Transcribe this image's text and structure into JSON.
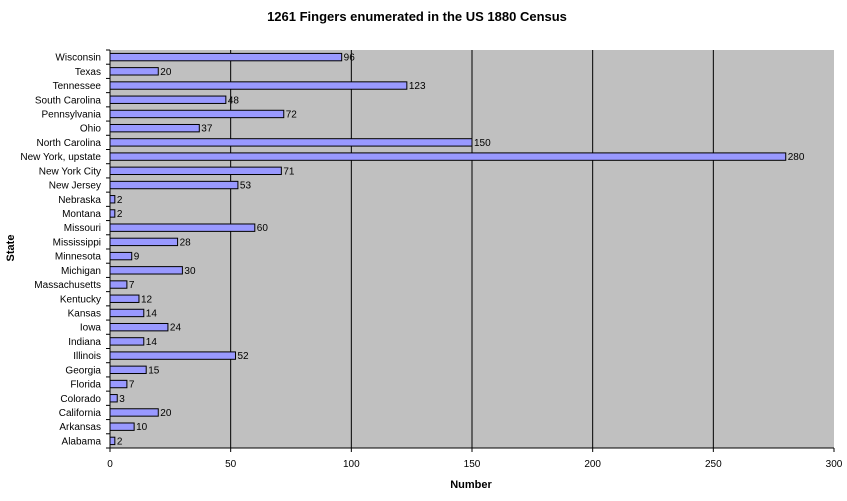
{
  "chart_data": {
    "type": "bar",
    "orientation": "horizontal",
    "title": "1261 Fingers enumerated in the US 1880 Census",
    "xlabel": "Number",
    "ylabel": "State",
    "xlim": [
      0,
      300
    ],
    "x_ticks": [
      0,
      50,
      100,
      150,
      200,
      250,
      300
    ],
    "grid": true,
    "categories": [
      "Wisconsin",
      "Texas",
      "Tennessee",
      "South Carolina",
      "Pennsylvania",
      "Ohio",
      "North Carolina",
      "New York, upstate",
      "New York City",
      "New Jersey",
      "Nebraska",
      "Montana",
      "Missouri",
      "Mississippi",
      "Minnesota",
      "Michigan",
      "Massachusetts",
      "Kentucky",
      "Kansas",
      "Iowa",
      "Indiana",
      "Illinois",
      "Georgia",
      "Florida",
      "Colorado",
      "California",
      "Arkansas",
      "Alabama"
    ],
    "values": [
      96,
      20,
      123,
      48,
      72,
      37,
      150,
      280,
      71,
      53,
      2,
      2,
      60,
      28,
      9,
      30,
      7,
      12,
      14,
      24,
      14,
      52,
      15,
      7,
      3,
      20,
      10,
      2
    ],
    "colors": {
      "bar_fill": "#9999ff",
      "bar_stroke": "#000000",
      "plot_background": "#c0c0c0",
      "gridline": "#000000"
    }
  }
}
